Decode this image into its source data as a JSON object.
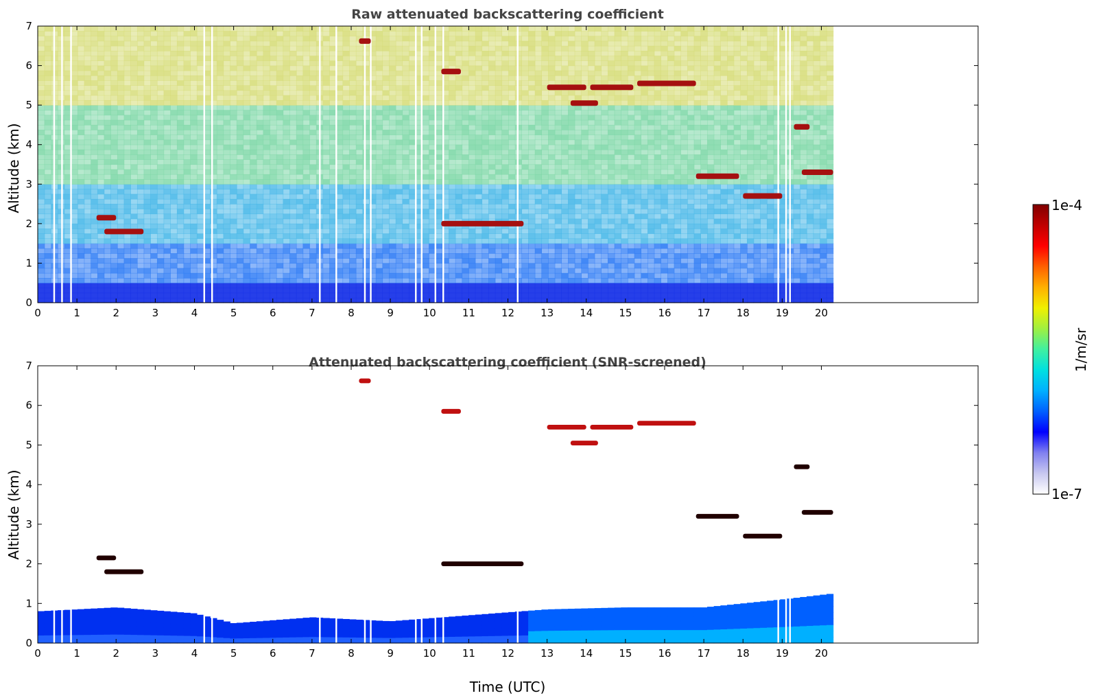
{
  "chart_data": [
    {
      "type": "heatmap",
      "title": "Raw attenuated backscattering coefficient",
      "xlabel": "",
      "ylabel": "Altitude (km)",
      "xlim": [
        0,
        24
      ],
      "ylim": [
        0,
        7
      ],
      "xticks": [
        "0",
        "1",
        "2",
        "3",
        "4",
        "5",
        "6",
        "7",
        "8",
        "9",
        "10",
        "11",
        "12",
        "13",
        "14",
        "15",
        "16",
        "17",
        "18",
        "19",
        "20"
      ],
      "yticks": [
        "0",
        "1",
        "2",
        "3",
        "4",
        "5",
        "6",
        "7"
      ],
      "data_end_time": 20.3,
      "background_color_by_altitude": [
        {
          "altitude": 0.0,
          "color": "#1a35e8"
        },
        {
          "altitude": 0.5,
          "color": "#2f7cf5"
        },
        {
          "altitude": 1.5,
          "color": "#49b8e8"
        },
        {
          "altitude": 3.0,
          "color": "#7fd8a8"
        },
        {
          "altitude": 5.0,
          "color": "#d7dd7a"
        },
        {
          "altitude": 7.0,
          "color": "#e59a55"
        }
      ],
      "missing_data_times": [
        0.42,
        0.62,
        0.85,
        4.25,
        4.45,
        7.2,
        7.62,
        8.35,
        8.5,
        9.65,
        9.8,
        10.15,
        10.35,
        12.25,
        18.9,
        19.1,
        19.2
      ],
      "layers": [
        {
          "time": [
            1.5,
            2.0
          ],
          "altitude": 2.15
        },
        {
          "time": [
            1.7,
            2.7
          ],
          "altitude": 1.8
        },
        {
          "time": [
            8.2,
            8.5
          ],
          "altitude": 6.62
        },
        {
          "time": [
            10.3,
            10.8
          ],
          "altitude": 5.85
        },
        {
          "time": [
            13.0,
            14.0
          ],
          "altitude": 5.45
        },
        {
          "time": [
            13.6,
            14.3
          ],
          "altitude": 5.05
        },
        {
          "time": [
            14.1,
            15.2
          ],
          "altitude": 5.45
        },
        {
          "time": [
            15.3,
            16.8
          ],
          "altitude": 5.55
        },
        {
          "time": [
            10.3,
            12.4
          ],
          "altitude": 2.0
        },
        {
          "time": [
            16.8,
            17.9
          ],
          "altitude": 3.2
        },
        {
          "time": [
            18.0,
            19.0
          ],
          "altitude": 2.7
        },
        {
          "time": [
            19.3,
            19.7
          ],
          "altitude": 4.45
        },
        {
          "time": [
            19.5,
            20.3
          ],
          "altitude": 3.3
        }
      ]
    },
    {
      "type": "heatmap",
      "title": "Attenuated backscattering coefficient (SNR-screened)",
      "xlabel": "Time (UTC)",
      "ylabel": "Altitude (km)",
      "xlim": [
        0,
        24
      ],
      "ylim": [
        0,
        7
      ],
      "xticks": [
        "0",
        "1",
        "2",
        "3",
        "4",
        "5",
        "6",
        "7",
        "8",
        "9",
        "10",
        "11",
        "12",
        "13",
        "14",
        "15",
        "16",
        "17",
        "18",
        "19",
        "20"
      ],
      "yticks": [
        "0",
        "1",
        "2",
        "3",
        "4",
        "5",
        "6",
        "7"
      ],
      "data_end_time": 20.3,
      "boundary_layer_top_km": [
        {
          "time": 0,
          "altitude": 0.8
        },
        {
          "time": 2,
          "altitude": 0.9
        },
        {
          "time": 4,
          "altitude": 0.75
        },
        {
          "time": 5,
          "altitude": 0.5
        },
        {
          "time": 7,
          "altitude": 0.65
        },
        {
          "time": 9,
          "altitude": 0.55
        },
        {
          "time": 11,
          "altitude": 0.7
        },
        {
          "time": 13,
          "altitude": 0.85
        },
        {
          "time": 15,
          "altitude": 0.9
        },
        {
          "time": 17,
          "altitude": 0.9
        },
        {
          "time": 18,
          "altitude": 1.0
        },
        {
          "time": 19,
          "altitude": 1.1
        },
        {
          "time": 20.3,
          "altitude": 1.25
        }
      ]
    }
  ],
  "colorbar": {
    "label": "1/m/sr",
    "max_label": "1e-4",
    "min_label": "1e-7",
    "colormap": [
      "#ffffff",
      "#c8c8f0",
      "#8080f0",
      "#0000ff",
      "#0060ff",
      "#00b0ff",
      "#00e0e0",
      "#40f0a0",
      "#a0f040",
      "#f0f000",
      "#ffb000",
      "#ff6000",
      "#ff0000",
      "#c00000",
      "#800000"
    ]
  }
}
